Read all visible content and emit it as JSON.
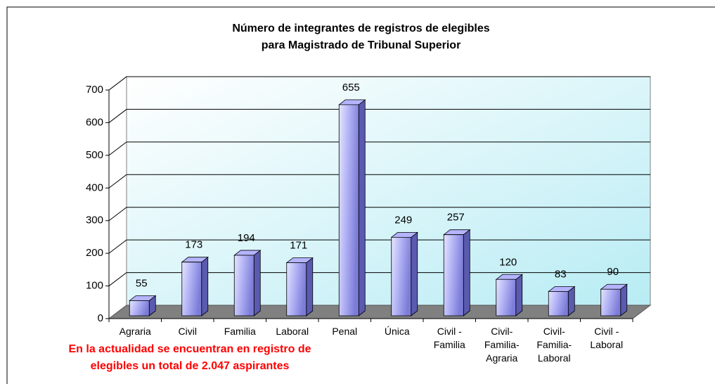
{
  "chart_data": {
    "type": "bar3d",
    "title": "Número de integrantes de registros de elegibles\npara Magistrado de Tribunal Superior",
    "categories": [
      "Agraria",
      "Civil",
      "Familia",
      "Laboral",
      "Penal",
      "Única",
      "Civil -\nFamilia",
      "Civil-\nFamilia-\nAgraria",
      "Civil-\nFamilia-\nLaboral",
      "Civil -\nLaboral"
    ],
    "values": [
      55,
      173,
      194,
      171,
      655,
      249,
      257,
      120,
      83,
      90
    ],
    "color": "#8f8fe6",
    "ylim": [
      0,
      700
    ],
    "yticks": [
      0,
      100,
      200,
      300,
      400,
      500,
      600,
      700
    ],
    "grid": true,
    "annotation": "En la actualidad se encuentran en registro de\nelegibles un total de 2.047 aspirantes"
  }
}
